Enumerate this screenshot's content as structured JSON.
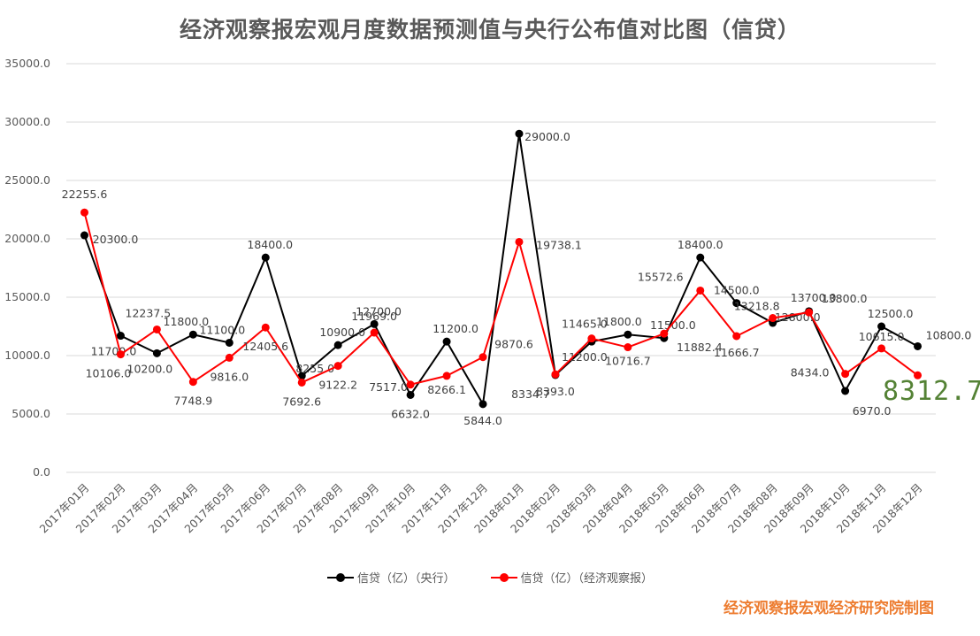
{
  "title": "经济观察报宏观月度数据预测值与央行公布值对比图（信贷）",
  "highlight_value": "8312.7",
  "footer": "经济观察报宏观经济研究院制图",
  "colors": {
    "central_bank": "#000000",
    "eeo": "#FF0000",
    "grid": "#D9D9D9",
    "highlight": "#548235",
    "footer": "#ED7D31"
  },
  "chart_data": {
    "type": "line",
    "title": "经济观察报宏观月度数据预测值与央行公布值对比图（信贷）",
    "categories": [
      "2017年01月",
      "2017年02月",
      "2017年03月",
      "2017年04月",
      "2017年05月",
      "2017年06月",
      "2017年07月",
      "2017年08月",
      "2017年09月",
      "2017年10月",
      "2017年11月",
      "2017年12月",
      "2018年01月",
      "2018年02月",
      "2018年03月",
      "2018年04月",
      "2018年05月",
      "2018年06月",
      "2018年07月",
      "2018年08月",
      "2018年09月",
      "2018年10月",
      "2018年11月",
      "2018年12月"
    ],
    "ylim": [
      0,
      35000
    ],
    "yticks": [
      "0.0",
      "5000.0",
      "10000.0",
      "15000.0",
      "20000.0",
      "25000.0",
      "30000.0",
      "35000.0"
    ],
    "grid": true,
    "legend_position": "bottom",
    "series": [
      {
        "name": "信贷（亿）（央行）",
        "color": "#000000",
        "values": [
          20300,
          11700,
          10200,
          11800,
          11100,
          18400,
          8255,
          10900,
          12700,
          6632,
          11200,
          5844,
          29000,
          8334.7,
          11200,
          11800,
          11500,
          18400,
          14500,
          12800,
          13800,
          6970,
          12500,
          10800
        ],
        "labels": [
          "20300.0",
          "11700.0",
          "10200.0",
          "11800.0",
          "11100.0",
          "18400.0",
          "8255.0",
          "10900.0",
          "12700.0",
          "6632.0",
          "11200.0",
          "5844.0",
          "29000.0",
          "8334.7",
          "11200.0",
          "11800.0",
          "11500.0",
          "18400.0",
          "14500.0",
          "12800.0",
          "13800.0",
          "6970.0",
          "12500.0",
          "10800.0"
        ]
      },
      {
        "name": "信贷（亿）（经济观察报）",
        "color": "#FF0000",
        "values": [
          22255.6,
          10106,
          12237.5,
          7748.9,
          9816,
          12405.6,
          7692.6,
          9122.2,
          11969,
          7517,
          8266.1,
          9870.6,
          19738.1,
          8393,
          11465,
          10716.7,
          11882.4,
          15572.6,
          11666.7,
          13218.8,
          13700,
          8434,
          10615,
          8312.7
        ],
        "labels": [
          "22255.6",
          "10106.0",
          "12237.5",
          "7748.9",
          "9816.0",
          "12405.6",
          "7692.6",
          "9122.2",
          "11969.0",
          "7517.0",
          "8266.1",
          "9870.6",
          "19738.1",
          "8393.0",
          "11465.0",
          "10716.7",
          "11882.4",
          "15572.6",
          "11666.7",
          "13218.8",
          "13700.0",
          "8434.0",
          "10615.0",
          ""
        ]
      }
    ]
  }
}
